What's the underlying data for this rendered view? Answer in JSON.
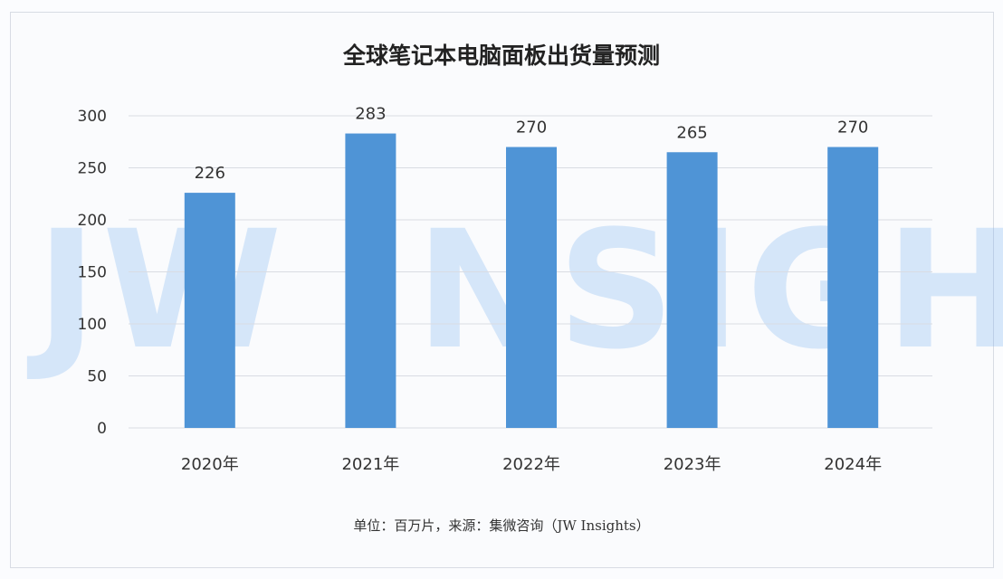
{
  "chart_data": {
    "type": "bar",
    "title": "全球笔记本电脑面板出货量预测",
    "categories": [
      "2020年",
      "2021年",
      "2022年",
      "2023年",
      "2024年"
    ],
    "values": [
      226,
      283,
      270,
      265,
      270
    ],
    "data_labels": [
      "226",
      "283",
      "270",
      "265",
      "270"
    ],
    "yticks": [
      "0",
      "50",
      "100",
      "150",
      "200",
      "250",
      "300"
    ],
    "ylim": [
      0,
      300
    ],
    "grid": true,
    "bar_color": "#4f94d6",
    "footnote": "单位：百万片，来源：集微咨询（JW Insights）",
    "watermark": "JW INSIGHTS"
  }
}
